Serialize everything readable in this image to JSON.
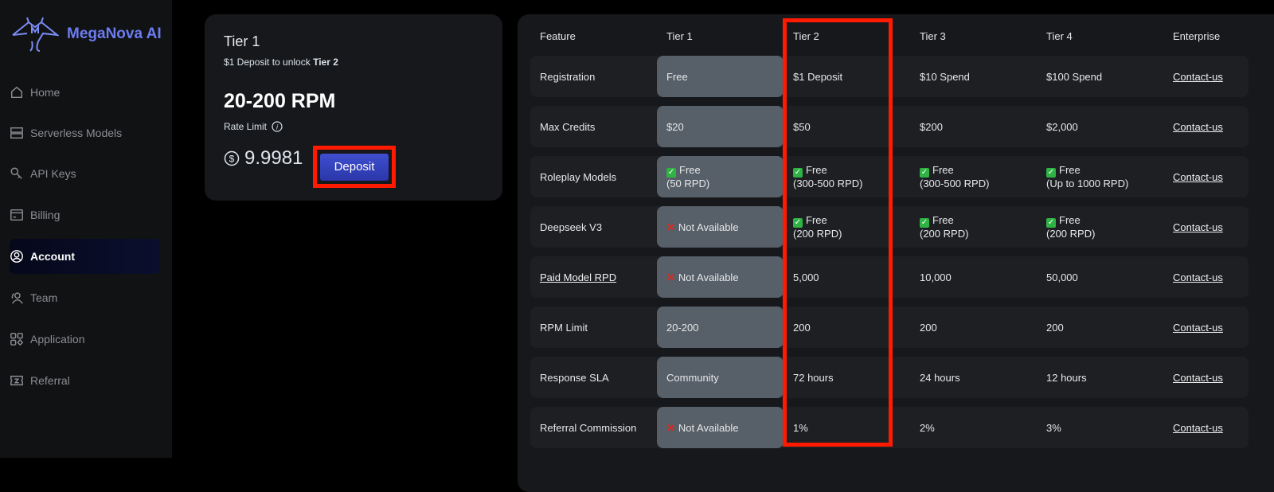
{
  "brand": {
    "name": "MegaNova AI",
    "accent": "#6b7cf0"
  },
  "sidebar": {
    "items": [
      {
        "label": "Home",
        "icon": "home-icon"
      },
      {
        "label": "Serverless Models",
        "icon": "server-icon"
      },
      {
        "label": "API Keys",
        "icon": "key-icon"
      },
      {
        "label": "Billing",
        "icon": "billing-icon"
      },
      {
        "label": "Account",
        "icon": "account-icon",
        "active": true
      },
      {
        "label": "Team",
        "icon": "team-icon"
      },
      {
        "label": "Application",
        "icon": "application-icon"
      },
      {
        "label": "Referral",
        "icon": "referral-icon"
      }
    ]
  },
  "tier_card": {
    "title": "Tier 1",
    "subtitle_prefix": "$1 Deposit to unlock ",
    "subtitle_bold": "Tier 2",
    "rpm": "20-200 RPM",
    "rate_label": "Rate Limit",
    "balance": "9.9981",
    "deposit_label": "Deposit"
  },
  "table": {
    "headers": [
      "Feature",
      "Tier 1",
      "Tier 2",
      "Tier 3",
      "Tier 4",
      "Enterprise"
    ],
    "rows": [
      {
        "feature": "Registration",
        "cells": [
          {
            "t": "Free"
          },
          {
            "t": "$1 Deposit"
          },
          {
            "t": "$10 Spend"
          },
          {
            "t": "$100 Spend"
          },
          {
            "t": "Contact-us",
            "link": true
          }
        ]
      },
      {
        "feature": "Max Credits",
        "cells": [
          {
            "t": "$20"
          },
          {
            "t": "$50"
          },
          {
            "t": "$200"
          },
          {
            "t": "$2,000"
          },
          {
            "t": "Contact-us",
            "link": true
          }
        ]
      },
      {
        "feature": "Roleplay Models",
        "cells": [
          {
            "t": "Free",
            "s": "(50 RPD)",
            "icon": "check"
          },
          {
            "t": "Free",
            "s": "(300-500 RPD)",
            "icon": "check"
          },
          {
            "t": "Free",
            "s": "(300-500 RPD)",
            "icon": "check"
          },
          {
            "t": "Free",
            "s": "(Up to 1000 RPD)",
            "icon": "check"
          },
          {
            "t": "Contact-us",
            "link": true
          }
        ]
      },
      {
        "feature": "Deepseek V3",
        "cells": [
          {
            "t": "Not Available",
            "icon": "cross"
          },
          {
            "t": "Free",
            "s": "(200 RPD)",
            "icon": "check"
          },
          {
            "t": "Free",
            "s": "(200 RPD)",
            "icon": "check"
          },
          {
            "t": "Free",
            "s": "(200 RPD)",
            "icon": "check"
          },
          {
            "t": "Contact-us",
            "link": true
          }
        ]
      },
      {
        "feature": "Paid Model RPD",
        "feature_link": true,
        "cells": [
          {
            "t": "Not Available",
            "icon": "cross"
          },
          {
            "t": "5,000"
          },
          {
            "t": "10,000"
          },
          {
            "t": "50,000"
          },
          {
            "t": "Contact-us",
            "link": true
          }
        ]
      },
      {
        "feature": "RPM Limit",
        "cells": [
          {
            "t": "20-200"
          },
          {
            "t": "200"
          },
          {
            "t": "200"
          },
          {
            "t": "200"
          },
          {
            "t": "Contact-us",
            "link": true
          }
        ]
      },
      {
        "feature": "Response SLA",
        "cells": [
          {
            "t": "Community"
          },
          {
            "t": "72 hours"
          },
          {
            "t": "24 hours"
          },
          {
            "t": "12 hours"
          },
          {
            "t": "Contact-us",
            "link": true
          }
        ]
      },
      {
        "feature": "Referral Commission",
        "cells": [
          {
            "t": "Not Available",
            "icon": "cross"
          },
          {
            "t": "1%"
          },
          {
            "t": "2%"
          },
          {
            "t": "3%"
          },
          {
            "t": "Contact-us",
            "link": true
          }
        ]
      }
    ]
  },
  "highlight_color": "#ff1a00"
}
